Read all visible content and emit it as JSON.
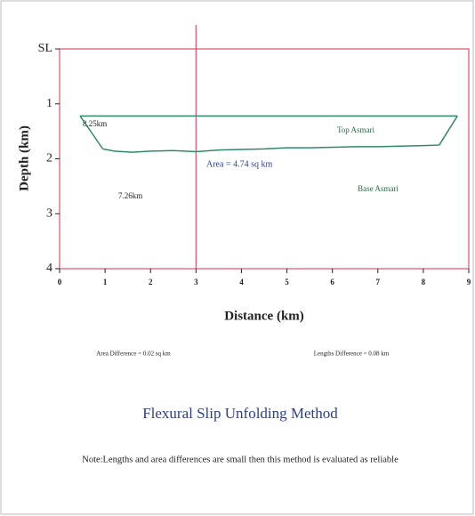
{
  "chart_data": {
    "type": "line",
    "y_label": "Depth (km)",
    "x_label": "Distance (km)",
    "xlim": [
      0,
      9
    ],
    "ylim": [
      0,
      4
    ],
    "y_inverted": true,
    "xticks": [
      0,
      1,
      2,
      3,
      4,
      5,
      6,
      7,
      8,
      9
    ],
    "yticks": [
      {
        "value": 0,
        "label": "SL"
      },
      1,
      2,
      3,
      4
    ],
    "frame_color": "#e0506a",
    "vertical_line_x": 3,
    "series": [
      {
        "name": "Top Asmari",
        "color": "#2f8a6a",
        "x": [
          0.45,
          8.75
        ],
        "values": [
          1.22,
          1.22
        ]
      },
      {
        "name": "Base Asmari",
        "color": "#2f8a6a",
        "x": [
          0.95,
          1.2,
          1.6,
          2.0,
          2.5,
          3.0,
          3.5,
          4.0,
          4.5,
          5.0,
          5.5,
          6.0,
          6.5,
          7.0,
          7.5,
          8.0,
          8.35
        ],
        "values": [
          1.82,
          1.86,
          1.88,
          1.86,
          1.85,
          1.87,
          1.84,
          1.83,
          1.82,
          1.8,
          1.8,
          1.79,
          1.78,
          1.78,
          1.77,
          1.76,
          1.75
        ]
      }
    ],
    "annotations": [
      "8.25km",
      "7.26km",
      "Area = 4.74 sq km"
    ],
    "notes": [
      "Area Difference = 0.02 sq km",
      "Lengths Difference = 0.08 km"
    ],
    "title": "Flexural Slip Unfolding Method",
    "footnote": "Note:Lengths and area differences are small then this method is evaluated as reliable"
  }
}
